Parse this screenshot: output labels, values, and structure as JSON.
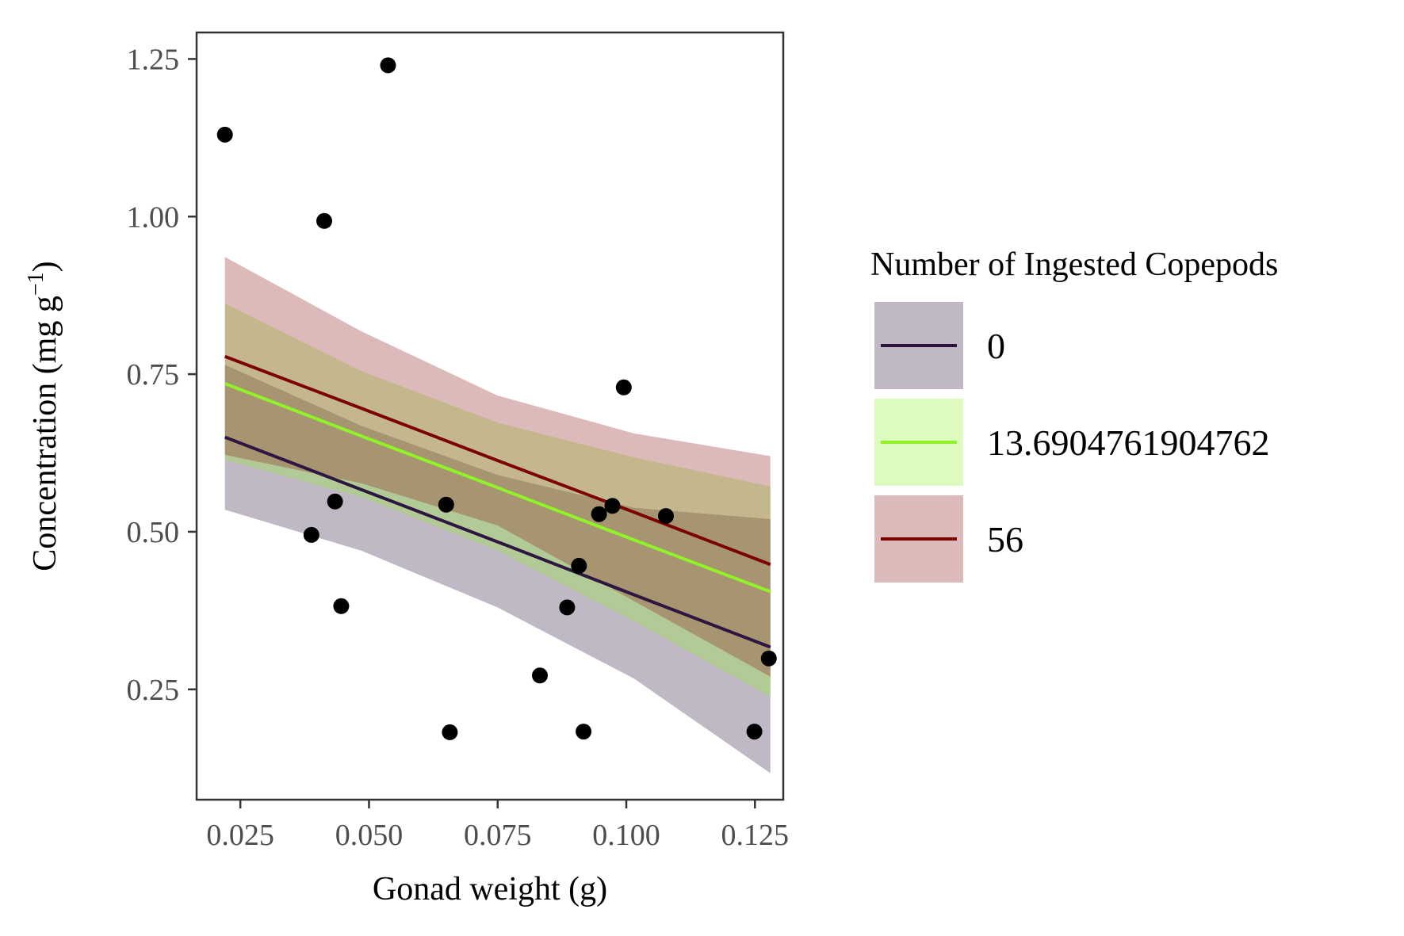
{
  "chart_data": {
    "type": "scatter",
    "xlabel": "Gonad weight (g)",
    "ylabel_main": "Concentration (mg g",
    "ylabel_sup": "−1",
    "ylabel_close": ")",
    "xlim": [
      0.0165,
      0.1305
    ],
    "ylim": [
      0.075,
      1.292
    ],
    "xticks": [
      0.025,
      0.05,
      0.075,
      0.1,
      0.125
    ],
    "xtick_labels": [
      "0.025",
      "0.050",
      "0.075",
      "0.100",
      "0.125"
    ],
    "yticks": [
      0.25,
      0.5,
      0.75,
      1.0,
      1.25
    ],
    "ytick_labels": [
      "0.25",
      "0.50",
      "0.75",
      "1.00",
      "1.25"
    ],
    "grid": false,
    "legend": {
      "title": "Number of Ingested Copepods",
      "placement": "right",
      "entries": [
        "0",
        "13.6904761904762",
        "56"
      ]
    },
    "points": [
      {
        "x": 0.022,
        "y": 1.13
      },
      {
        "x": 0.0413,
        "y": 0.993
      },
      {
        "x": 0.0537,
        "y": 1.24
      },
      {
        "x": 0.0388,
        "y": 0.495
      },
      {
        "x": 0.0434,
        "y": 0.548
      },
      {
        "x": 0.0446,
        "y": 0.382
      },
      {
        "x": 0.065,
        "y": 0.543
      },
      {
        "x": 0.0657,
        "y": 0.182
      },
      {
        "x": 0.0832,
        "y": 0.272
      },
      {
        "x": 0.0885,
        "y": 0.38
      },
      {
        "x": 0.0908,
        "y": 0.446
      },
      {
        "x": 0.0917,
        "y": 0.183
      },
      {
        "x": 0.0947,
        "y": 0.528
      },
      {
        "x": 0.0973,
        "y": 0.541
      },
      {
        "x": 0.0995,
        "y": 0.729
      },
      {
        "x": 0.1077,
        "y": 0.525
      },
      {
        "x": 0.1249,
        "y": 0.183
      },
      {
        "x": 0.1277,
        "y": 0.299
      }
    ],
    "series": [
      {
        "name": "0",
        "color": "#2d1640",
        "fill": "#2d1640",
        "fill_opacity": 0.3,
        "x": [
          0.022,
          0.0485,
          0.075,
          0.1015,
          0.128
        ],
        "fit": [
          0.65,
          0.567,
          0.484,
          0.4,
          0.317
        ],
        "lower": [
          0.535,
          0.47,
          0.38,
          0.267,
          0.117
        ],
        "upper": [
          0.765,
          0.668,
          0.59,
          0.538,
          0.52
        ]
      },
      {
        "name": "13.6904761904762",
        "color": "#91f22a",
        "fill": "#91f22a",
        "fill_opacity": 0.3,
        "x": [
          0.022,
          0.0485,
          0.075,
          0.1015,
          0.128
        ],
        "fit": [
          0.735,
          0.652,
          0.57,
          0.487,
          0.405
        ],
        "lower": [
          0.614,
          0.555,
          0.47,
          0.358,
          0.238
        ],
        "upper": [
          0.862,
          0.755,
          0.673,
          0.618,
          0.572
        ]
      },
      {
        "name": "56",
        "color": "#7d0101",
        "fill": "#8b1a1a",
        "fill_opacity": 0.3,
        "x": [
          0.022,
          0.0485,
          0.075,
          0.1015,
          0.128
        ],
        "fit": [
          0.778,
          0.696,
          0.613,
          0.531,
          0.448
        ],
        "lower": [
          0.622,
          0.577,
          0.51,
          0.39,
          0.27
        ],
        "upper": [
          0.936,
          0.818,
          0.716,
          0.656,
          0.62
        ]
      }
    ]
  }
}
